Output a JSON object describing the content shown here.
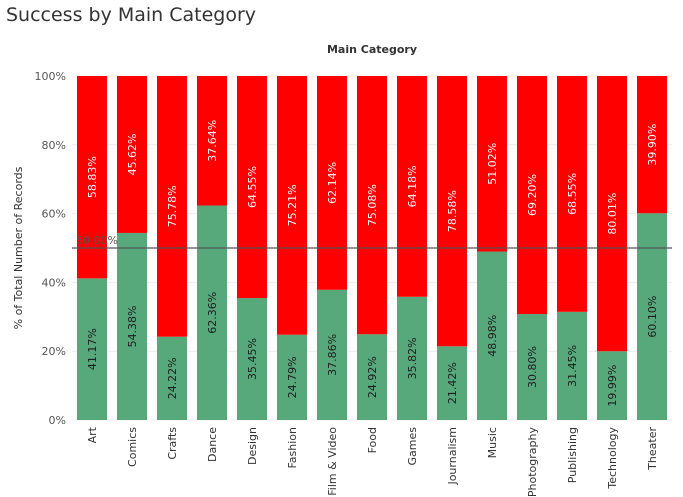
{
  "page": {
    "title": "Success by Main Category"
  },
  "chart_data": {
    "type": "bar",
    "stacked": true,
    "title": "Success by Main Category",
    "column_header": "Main Category",
    "ylabel": "% of Total Number of Records",
    "xlabel": "",
    "ylim": [
      0,
      100
    ],
    "y_ticks": [
      "0%",
      "20%",
      "40%",
      "60%",
      "80%",
      "100%"
    ],
    "y_tick_values": [
      0,
      20,
      40,
      60,
      80,
      100
    ],
    "categories": [
      "Art",
      "Comics",
      "Crafts",
      "Dance",
      "Design",
      "Fashion",
      "Film & Video",
      "Food",
      "Games",
      "Journalism",
      "Music",
      "Photography",
      "Publishing",
      "Technology",
      "Theater"
    ],
    "series": [
      {
        "color": "#57a87a",
        "values": [
          41.17,
          54.38,
          24.22,
          62.36,
          35.45,
          24.79,
          37.86,
          24.92,
          35.82,
          21.42,
          48.98,
          30.8,
          31.45,
          19.99,
          60.1
        ],
        "labels": [
          "41.17%",
          "54.38%",
          "24.22%",
          "62.36%",
          "35.45%",
          "24.79%",
          "37.86%",
          "24.92%",
          "35.82%",
          "21.42%",
          "48.98%",
          "30.80%",
          "31.45%",
          "19.99%",
          "60.10%"
        ]
      },
      {
        "color": "#ff0000",
        "values": [
          58.83,
          45.62,
          75.78,
          37.64,
          64.55,
          75.21,
          62.14,
          75.08,
          64.18,
          78.58,
          51.02,
          69.2,
          68.55,
          80.01,
          39.9
        ],
        "labels": [
          "58.83%",
          "45.62%",
          "75.78%",
          "37.64%",
          "64.55%",
          "75.21%",
          "62.14%",
          "75.08%",
          "64.18%",
          "78.58%",
          "51.02%",
          "69.20%",
          "68.55%",
          "80.01%",
          "39.90%"
        ]
      }
    ],
    "reference_line": {
      "value": 50,
      "label": "50.00%"
    },
    "grid": true,
    "legend": "none"
  }
}
